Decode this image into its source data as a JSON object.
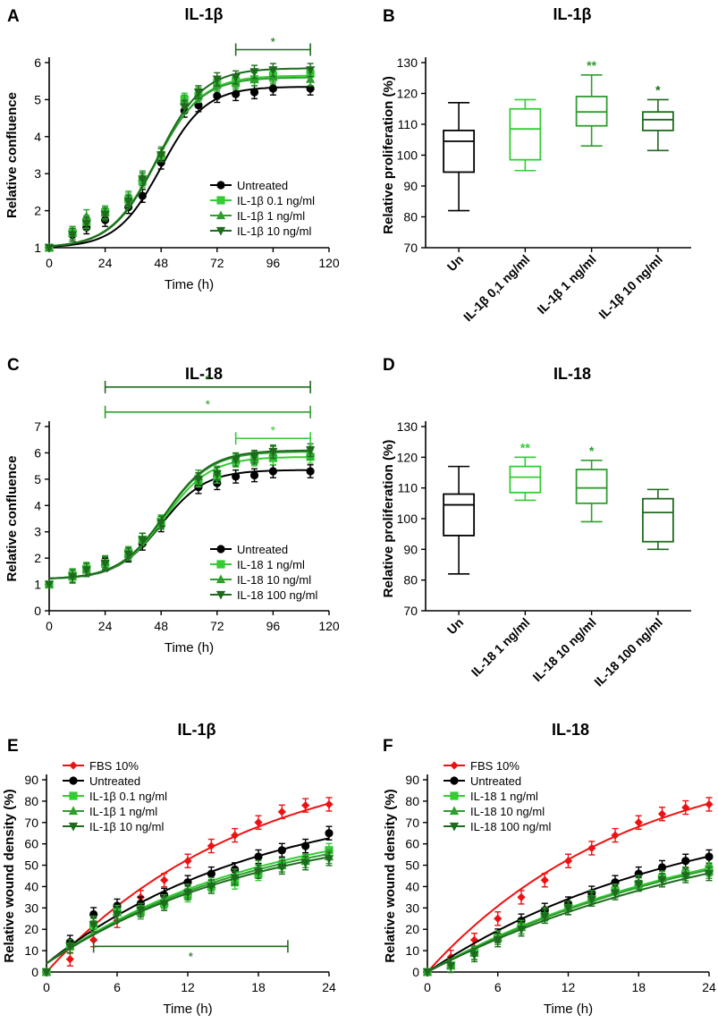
{
  "colors": {
    "black": "#000000",
    "green_light": "#33cc33",
    "green_mid": "#2e9e2e",
    "green_dark": "#1e6b1e",
    "red": "#ee1111"
  },
  "chart_data": [
    {
      "id": "A",
      "type": "line",
      "letter": "A",
      "title": "IL-1β",
      "xlabel": "Time (h)",
      "ylabel": "Relative confluence",
      "xlim": [
        0,
        120
      ],
      "ylim": [
        1,
        6
      ],
      "xticks": [
        0,
        24,
        48,
        72,
        96,
        120
      ],
      "yticks": [
        1,
        2,
        3,
        4,
        5,
        6
      ],
      "x": [
        0,
        10,
        16,
        24,
        34,
        40,
        48,
        58,
        64,
        72,
        80,
        88,
        96,
        112
      ],
      "legend_position": "bottom-right",
      "series": [
        {
          "name": "Untreated",
          "color_key": "black",
          "marker": "circle",
          "values": [
            1.0,
            1.35,
            1.55,
            1.75,
            2.1,
            2.4,
            3.3,
            4.7,
            4.85,
            5.1,
            5.15,
            5.2,
            5.3,
            5.3
          ],
          "fit": {
            "bottom": 1.0,
            "top": 5.35,
            "mid": 48,
            "slope": 9.5
          }
        },
        {
          "name": "IL-1β 0.1 ng/ml",
          "color_key": "green_light",
          "marker": "square",
          "values": [
            1.0,
            1.4,
            1.7,
            1.95,
            2.3,
            2.8,
            3.5,
            5.0,
            5.1,
            5.45,
            5.5,
            5.55,
            5.65,
            5.7
          ],
          "fit": {
            "bottom": 1.0,
            "top": 5.65,
            "mid": 46,
            "slope": 9.8
          }
        },
        {
          "name": "IL-1β 1 ng/ml",
          "color_key": "green_mid",
          "marker": "triangle",
          "values": [
            1.0,
            1.4,
            1.85,
            1.95,
            2.35,
            2.9,
            3.55,
            4.95,
            5.15,
            5.4,
            5.45,
            5.55,
            5.6,
            5.55
          ],
          "fit": {
            "bottom": 1.0,
            "top": 5.6,
            "mid": 45.5,
            "slope": 9.8
          }
        },
        {
          "name": "IL-1β 10 ng/ml",
          "color_key": "green_dark",
          "marker": "invtriangle",
          "values": [
            1.0,
            1.35,
            1.65,
            1.9,
            2.25,
            2.85,
            3.5,
            4.8,
            5.2,
            5.55,
            5.6,
            5.75,
            5.8,
            5.8
          ],
          "fit": {
            "bottom": 1.0,
            "top": 5.85,
            "mid": 46.5,
            "slope": 9.8
          }
        }
      ],
      "significance": [
        {
          "x1": 80,
          "x2": 112,
          "y": 6.35,
          "label": "*",
          "color_key": "green_dark"
        }
      ]
    },
    {
      "id": "B",
      "type": "boxplot",
      "letter": "B",
      "title": "IL-1β",
      "ylabel": "Relative proliferation (%)",
      "ylim": [
        70,
        130
      ],
      "yticks": [
        70,
        80,
        90,
        100,
        110,
        120,
        130
      ],
      "categories": [
        "Un",
        "IL-1β 0,1 ng/ml",
        "IL-1β 1 ng/ml",
        "IL-1β 10 ng/ml"
      ],
      "boxes": [
        {
          "min": 82,
          "q1": 94.5,
          "median": 104.5,
          "q3": 108,
          "max": 117,
          "color_key": "black",
          "star": ""
        },
        {
          "min": 95,
          "q1": 98.5,
          "median": 108.5,
          "q3": 115,
          "max": 118,
          "color_key": "green_light",
          "star": ""
        },
        {
          "min": 103,
          "q1": 109.5,
          "median": 114,
          "q3": 119,
          "max": 126,
          "color_key": "green_mid",
          "star": "**"
        },
        {
          "min": 101.5,
          "q1": 108,
          "median": 111.5,
          "q3": 114,
          "max": 118,
          "color_key": "green_dark",
          "star": "*"
        }
      ]
    },
    {
      "id": "C",
      "type": "line",
      "letter": "C",
      "title": "IL-18",
      "xlabel": "Time (h)",
      "ylabel": "Relative confluence",
      "xlim": [
        0,
        120
      ],
      "ylim": [
        0,
        7
      ],
      "xticks": [
        0,
        24,
        48,
        72,
        96,
        120
      ],
      "yticks": [
        0,
        1,
        2,
        3,
        4,
        5,
        6,
        7
      ],
      "x": [
        0,
        10,
        16,
        24,
        34,
        40,
        48,
        64,
        72,
        80,
        88,
        96,
        112
      ],
      "legend_position": "bottom-right",
      "series": [
        {
          "name": "Untreated",
          "color_key": "black",
          "marker": "circle",
          "values": [
            1.0,
            1.35,
            1.55,
            1.75,
            2.1,
            2.55,
            3.25,
            4.7,
            4.85,
            5.1,
            5.15,
            5.3,
            5.3
          ],
          "fit": {
            "bottom": 1.2,
            "top": 5.35,
            "mid": 48,
            "slope": 9.5
          }
        },
        {
          "name": "IL-18 1 ng/ml",
          "color_key": "green_light",
          "marker": "square",
          "values": [
            1.0,
            1.35,
            1.6,
            1.8,
            2.2,
            2.7,
            3.4,
            4.95,
            5.1,
            5.7,
            5.75,
            5.8,
            5.85
          ],
          "fit": {
            "bottom": 1.2,
            "top": 5.85,
            "mid": 49.5,
            "slope": 9.8
          }
        },
        {
          "name": "IL-18 10 ng/ml",
          "color_key": "green_mid",
          "marker": "triangle",
          "values": [
            1.0,
            1.3,
            1.55,
            1.85,
            2.15,
            2.7,
            3.35,
            5.1,
            5.25,
            5.75,
            5.8,
            6.0,
            6.0
          ],
          "fit": {
            "bottom": 1.2,
            "top": 6.05,
            "mid": 49.5,
            "slope": 9.8
          }
        },
        {
          "name": "IL-18 100 ng/ml",
          "color_key": "green_dark",
          "marker": "invtriangle",
          "values": [
            1.0,
            1.3,
            1.55,
            1.8,
            2.15,
            2.7,
            3.35,
            5.0,
            5.2,
            5.75,
            5.85,
            6.05,
            6.1
          ],
          "fit": {
            "bottom": 1.2,
            "top": 6.1,
            "mid": 49.5,
            "slope": 9.8
          }
        }
      ],
      "significance": [
        {
          "x1": 24,
          "x2": 112,
          "y": 8.5,
          "label": "*",
          "color_key": "green_dark"
        },
        {
          "x1": 24,
          "x2": 112,
          "y": 7.55,
          "label": "*",
          "color_key": "green_mid"
        },
        {
          "x1": 80,
          "x2": 112,
          "y": 6.55,
          "label": "*",
          "color_key": "green_light"
        }
      ]
    },
    {
      "id": "D",
      "type": "boxplot",
      "letter": "D",
      "title": "IL-18",
      "ylabel": "Relative proliferation (%)",
      "ylim": [
        70,
        130
      ],
      "yticks": [
        70,
        80,
        90,
        100,
        110,
        120,
        130
      ],
      "categories": [
        "Un",
        "IL-18 1 ng/ml",
        "IL-18 10 ng/ml",
        "IL-18 100 ng/ml"
      ],
      "boxes": [
        {
          "min": 82,
          "q1": 94.5,
          "median": 104.5,
          "q3": 108,
          "max": 117,
          "color_key": "black",
          "star": ""
        },
        {
          "min": 106,
          "q1": 108.5,
          "median": 113.5,
          "q3": 117,
          "max": 120,
          "color_key": "green_light",
          "star": "**"
        },
        {
          "min": 99,
          "q1": 105,
          "median": 110,
          "q3": 116,
          "max": 119,
          "color_key": "green_mid",
          "star": "*"
        },
        {
          "min": 90,
          "q1": 92.5,
          "median": 102,
          "q3": 106.5,
          "max": 109.5,
          "color_key": "green_dark",
          "star": ""
        }
      ]
    },
    {
      "id": "E",
      "type": "line",
      "letter": "E",
      "title": "IL-1β",
      "xlabel": "Time (h)",
      "ylabel": "Relative wound density (%)",
      "xlim": [
        0,
        24
      ],
      "ylim": [
        0,
        90
      ],
      "xticks": [
        0,
        6,
        12,
        18,
        24
      ],
      "yticks": [
        0,
        10,
        20,
        30,
        40,
        50,
        60,
        70,
        80,
        90
      ],
      "x": [
        0,
        2,
        4,
        6,
        8,
        10,
        12,
        14,
        16,
        18,
        20,
        22,
        24
      ],
      "legend_position": "top-left",
      "series": [
        {
          "name": "FBS 10%",
          "color_key": "red",
          "marker": "diamond",
          "values": [
            0,
            6,
            15,
            24,
            35,
            43,
            52,
            59,
            64,
            70,
            75,
            78,
            78.5
          ],
          "fit": {
            "type": "exp",
            "plateau": 105,
            "k": 0.058,
            "start": 0
          }
        },
        {
          "name": "Untreated",
          "color_key": "black",
          "marker": "circle",
          "values": [
            0,
            14,
            27,
            31,
            32,
            36,
            42,
            46,
            48,
            54,
            57,
            59,
            65
          ],
          "fit": {
            "type": "exp",
            "plateau": 84,
            "k": 0.055,
            "start": 4
          }
        },
        {
          "name": "IL-1β 0.1 ng/ml",
          "color_key": "green_light",
          "marker": "square",
          "values": [
            0,
            12,
            22,
            28,
            29,
            32,
            36,
            40,
            42,
            46,
            50,
            52,
            57
          ],
          "fit": {
            "type": "exp",
            "plateau": 76,
            "k": 0.055,
            "start": 4
          }
        },
        {
          "name": "IL-1β 1 ng/ml",
          "color_key": "green_mid",
          "marker": "triangle",
          "values": [
            0,
            12,
            23,
            28,
            28,
            33,
            38,
            41,
            45,
            49,
            50,
            52,
            54
          ],
          "fit": {
            "type": "exp",
            "plateau": 74,
            "k": 0.055,
            "start": 4
          }
        },
        {
          "name": "IL-1β 10 ng/ml",
          "color_key": "green_dark",
          "marker": "invtriangle",
          "values": [
            0,
            12,
            22,
            27,
            29,
            32,
            37,
            40,
            44,
            47,
            49,
            51,
            53
          ],
          "fit": {
            "type": "exp",
            "plateau": 72,
            "k": 0.055,
            "start": 4
          }
        }
      ],
      "significance": [
        {
          "x1": 4,
          "x2": 20.5,
          "y": 12,
          "label": "*",
          "color_key": "green_dark",
          "label_below": true
        }
      ]
    },
    {
      "id": "F",
      "type": "line",
      "letter": "F",
      "title": "IL-18",
      "xlabel": "Time (h)",
      "ylabel": "Relative wound density (%)",
      "xlim": [
        0,
        24
      ],
      "ylim": [
        0,
        90
      ],
      "xticks": [
        0,
        6,
        12,
        18,
        24
      ],
      "yticks": [
        0,
        10,
        20,
        30,
        40,
        50,
        60,
        70,
        80,
        90
      ],
      "x": [
        0,
        2,
        4,
        6,
        8,
        10,
        12,
        14,
        16,
        18,
        20,
        22,
        24
      ],
      "legend_position": "top-left",
      "series": [
        {
          "name": "FBS 10%",
          "color_key": "red",
          "marker": "diamond",
          "values": [
            0,
            7,
            15,
            25,
            35,
            43,
            52,
            58,
            64,
            70,
            74,
            77,
            78.5
          ],
          "fit": {
            "type": "exp",
            "plateau": 105,
            "k": 0.058,
            "start": 0
          }
        },
        {
          "name": "Untreated",
          "color_key": "black",
          "marker": "circle",
          "values": [
            0,
            3,
            9,
            17,
            24,
            29,
            32,
            37,
            42,
            46,
            49,
            52,
            54
          ],
          "fit": {
            "type": "exp",
            "plateau": 82,
            "k": 0.045,
            "start": 0
          }
        },
        {
          "name": "IL-18 1 ng/ml",
          "color_key": "green_light",
          "marker": "square",
          "values": [
            0,
            3,
            9,
            16,
            21,
            26,
            30,
            34,
            38,
            41,
            44,
            46,
            48
          ],
          "fit": {
            "type": "exp",
            "plateau": 80,
            "k": 0.039,
            "start": 0
          }
        },
        {
          "name": "IL-18 10 ng/ml",
          "color_key": "green_mid",
          "marker": "triangle",
          "values": [
            0,
            3,
            9,
            16,
            21,
            27,
            30,
            35,
            38,
            42,
            44,
            46,
            47
          ],
          "fit": {
            "type": "exp",
            "plateau": 80,
            "k": 0.038,
            "start": 0
          }
        },
        {
          "name": "IL-18 100 ng/ml",
          "color_key": "green_dark",
          "marker": "invtriangle",
          "values": [
            0,
            3,
            8,
            15,
            20,
            26,
            30,
            34,
            37,
            41,
            43,
            45,
            46
          ],
          "fit": {
            "type": "exp",
            "plateau": 80,
            "k": 0.036,
            "start": 0
          }
        }
      ],
      "significance": []
    }
  ]
}
